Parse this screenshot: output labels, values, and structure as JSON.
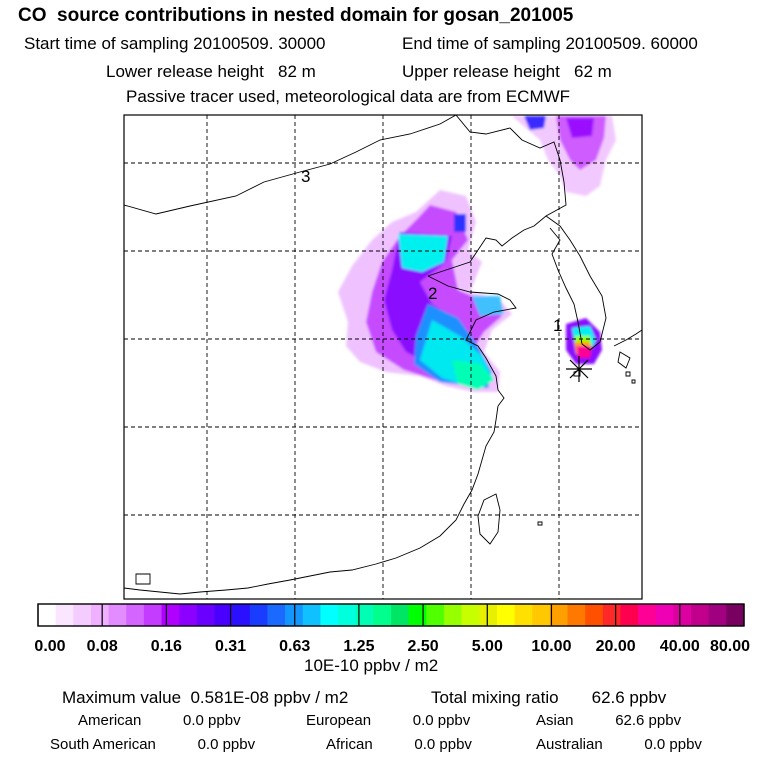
{
  "header": {
    "title": "CO  source contributions in nested domain for gosan_201005",
    "start": "Start time of sampling 20100509. 30000",
    "end": "End time of sampling 20100509. 60000",
    "lower": "Lower release height   82 m",
    "upper": "Upper release height   62 m",
    "note": "Passive tracer used, meteorological data are from ECMWF"
  },
  "chart_data": {
    "type": "heatmap",
    "title": "CO  source contributions in nested domain for gosan_201005",
    "map_labels": [
      "3",
      "2",
      "1"
    ],
    "colorbar": {
      "unit": "10E-10 ppbv / m2",
      "tick_labels": [
        "0.00",
        "0.08",
        "0.16",
        "0.31",
        "0.63",
        "1.25",
        "2.50",
        "5.00",
        "10.00",
        "20.00",
        "40.00",
        "80.00"
      ],
      "tick_values": [
        0.0,
        0.08,
        0.16,
        0.31,
        0.63,
        1.25,
        2.5,
        5.0,
        10.0,
        20.0,
        40.0,
        80.0
      ],
      "colors": [
        "#ffffff",
        "#fbe6ff",
        "#f5ccff",
        "#eeb0ff",
        "#e38cff",
        "#d466ff",
        "#c43cff",
        "#b000ff",
        "#8c00ff",
        "#6a00ff",
        "#4a00ff",
        "#2a10ff",
        "#1a3cff",
        "#1a6aff",
        "#1496ff",
        "#10c0ff",
        "#00ffff",
        "#00ffdc",
        "#00ffb4",
        "#00ff8c",
        "#00e664",
        "#00ff00",
        "#50ff00",
        "#96ff00",
        "#c8ff00",
        "#e6f000",
        "#ffff00",
        "#ffe000",
        "#ffc800",
        "#ffa000",
        "#ff7800",
        "#ff5000",
        "#ff2828",
        "#ff0050",
        "#ff0096",
        "#f000b4",
        "#dc00a0",
        "#c0008c",
        "#a00080",
        "#780060"
      ]
    }
  },
  "footer": {
    "max_value": "Maximum value  0.581E-08 ppbv / m2",
    "total_mixing": "Total mixing ratio       62.6 ppbv",
    "american": "American          0.0 ppbv",
    "european": "European          0.0 ppbv",
    "asian": "Asian          62.6 ppbv",
    "south_american": "South American          0.0 ppbv",
    "african": "African          0.0 ppbv",
    "australian": "Australian          0.0 ppbv"
  }
}
